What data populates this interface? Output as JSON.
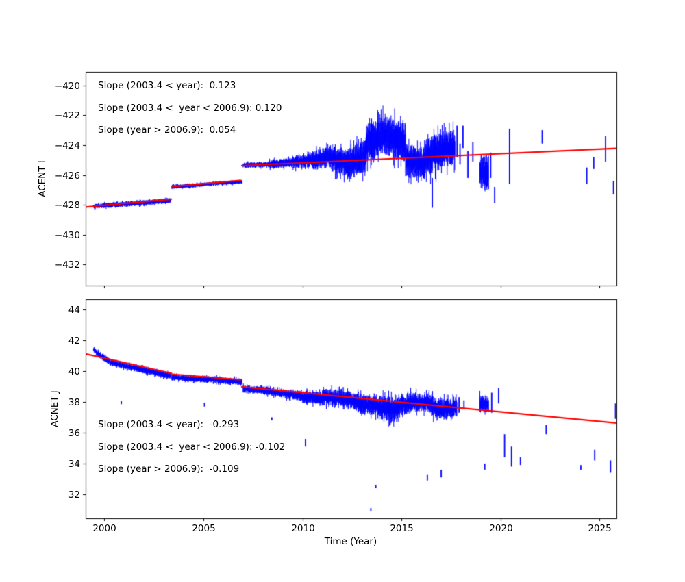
{
  "figure": {
    "background": "#ffffff"
  },
  "colors": {
    "series": "#0000ff",
    "trend": "#ff0000",
    "axis": "#000000",
    "text": "#000000"
  },
  "x_axis": {
    "label": "Time (Year)",
    "range": [
      1999.05,
      2025.85
    ],
    "ticks": [
      2000,
      2005,
      2010,
      2015,
      2020,
      2025
    ],
    "tick_labels": [
      "2000",
      "2005",
      "2010",
      "2015",
      "2020",
      "2025"
    ]
  },
  "chart_data": [
    {
      "type": "line",
      "ylabel": "ACENT I",
      "ylim": [
        -433.4,
        -419.1
      ],
      "yticks": [
        -420,
        -422,
        -424,
        -426,
        -428,
        -430,
        -432
      ],
      "ytick_labels": [
        "−420",
        "−422",
        "−424",
        "−426",
        "−428",
        "−430",
        "−432"
      ],
      "annotations": [
        "Slope (2003.4 < year):  0.123",
        "Slope (2003.4 <  year < 2006.9): 0.120",
        "Slope (year > 2006.9):  0.054"
      ],
      "trend_slopes": {
        "before_2003_4": 0.123,
        "from_2003_4_to_2006_9": 0.12,
        "after_2006_9": 0.054
      },
      "trend_segments": [
        [
          1999.05,
          -428.15,
          2003.4,
          -427.62
        ],
        [
          2003.4,
          -426.78,
          2006.9,
          -426.36
        ],
        [
          2006.9,
          -425.38,
          2025.85,
          -424.22
        ]
      ],
      "noise_band": [
        [
          1999.45,
          2000.0,
          -428.1,
          -428.05,
          0.16
        ],
        [
          2000.0,
          2001.0,
          -428.05,
          -427.95,
          0.18
        ],
        [
          2001.0,
          2002.0,
          -427.95,
          -427.85,
          0.18
        ],
        [
          2002.0,
          2003.35,
          -427.85,
          -427.7,
          0.17
        ],
        [
          2003.4,
          2004.3,
          -426.8,
          -426.72,
          0.14
        ],
        [
          2004.3,
          2005.3,
          -426.72,
          -426.6,
          0.13
        ],
        [
          2005.3,
          2006.95,
          -426.6,
          -426.45,
          0.13
        ],
        [
          2007.0,
          2008.3,
          -425.35,
          -425.3,
          0.18
        ],
        [
          2008.3,
          2009.5,
          -425.3,
          -425.15,
          0.3
        ],
        [
          2009.5,
          2010.5,
          -425.15,
          -425.0,
          0.45
        ],
        [
          2010.5,
          2011.5,
          -425.0,
          -424.8,
          0.7
        ],
        [
          2011.5,
          2012.3,
          -424.9,
          -425.2,
          0.95
        ],
        [
          2012.3,
          2013.2,
          -425.3,
          -424.7,
          1.1
        ],
        [
          2013.2,
          2014.0,
          -423.9,
          -423.4,
          1.3
        ],
        [
          2014.0,
          2015.2,
          -423.3,
          -423.8,
          1.35
        ],
        [
          2015.2,
          2016.2,
          -425.0,
          -425.2,
          1.1
        ],
        [
          2016.2,
          2017.0,
          -424.8,
          -424.4,
          1.3
        ],
        [
          2017.0,
          2017.7,
          -424.3,
          -424.2,
          1.2
        ],
        [
          2018.95,
          2019.4,
          -425.8,
          -425.9,
          1.2
        ]
      ],
      "outlier_strokes": [
        [
          2016.55,
          -426.2,
          -428.2
        ],
        [
          2017.8,
          -422.7,
          -424.8
        ],
        [
          2017.95,
          -423.9,
          -425.3
        ],
        [
          2018.1,
          -422.7,
          -424.2
        ],
        [
          2018.35,
          -424.4,
          -426.2
        ],
        [
          2018.6,
          -423.8,
          -425.1
        ],
        [
          2019.5,
          -424.5,
          -426.2
        ],
        [
          2019.7,
          -426.8,
          -427.9
        ],
        [
          2020.45,
          -422.9,
          -426.6
        ],
        [
          2022.1,
          -423.0,
          -423.9
        ],
        [
          2024.35,
          -425.5,
          -426.6
        ],
        [
          2024.7,
          -424.8,
          -425.6
        ],
        [
          2025.3,
          -423.4,
          -425.1
        ],
        [
          2025.7,
          -426.4,
          -427.3
        ]
      ]
    },
    {
      "type": "line",
      "ylabel": "ACNET J",
      "ylim": [
        30.44,
        44.67
      ],
      "yticks": [
        44,
        42,
        40,
        38,
        36,
        34,
        32
      ],
      "ytick_labels": [
        "44",
        "42",
        "40",
        "38",
        "36",
        "34",
        "32"
      ],
      "annotations": [
        "Slope (2003.4 < year):  -0.293",
        "Slope (2003.4 <  year < 2006.9): -0.102",
        "Slope (year > 2006.9):  -0.109"
      ],
      "trend_slopes": {
        "before_2003_4": -0.293,
        "from_2003_4_to_2006_9": -0.102,
        "after_2006_9": -0.109
      },
      "trend_segments": [
        [
          1999.05,
          41.12,
          2003.4,
          39.85
        ],
        [
          2003.4,
          39.8,
          2006.9,
          39.44
        ],
        [
          2006.9,
          38.98,
          2025.85,
          36.63
        ]
      ],
      "noise_band": [
        [
          1999.45,
          1999.8,
          41.4,
          41.0,
          0.2
        ],
        [
          1999.8,
          2000.3,
          41.0,
          40.6,
          0.22
        ],
        [
          2000.3,
          2001.2,
          40.55,
          40.3,
          0.2
        ],
        [
          2001.2,
          2002.2,
          40.3,
          40.0,
          0.22
        ],
        [
          2002.2,
          2003.35,
          40.0,
          39.7,
          0.22
        ],
        [
          2003.4,
          2004.5,
          39.6,
          39.5,
          0.2
        ],
        [
          2004.5,
          2005.5,
          39.5,
          39.45,
          0.22
        ],
        [
          2005.5,
          2006.95,
          39.45,
          39.3,
          0.22
        ],
        [
          2007.0,
          2008.0,
          38.85,
          38.75,
          0.25
        ],
        [
          2008.0,
          2009.0,
          38.75,
          38.55,
          0.28
        ],
        [
          2009.0,
          2010.0,
          38.55,
          38.35,
          0.3
        ],
        [
          2010.0,
          2011.0,
          38.3,
          38.25,
          0.4
        ],
        [
          2011.0,
          2012.0,
          38.3,
          38.3,
          0.55
        ],
        [
          2012.0,
          2012.8,
          38.2,
          38.0,
          0.6
        ],
        [
          2012.8,
          2013.8,
          37.9,
          37.7,
          0.65
        ],
        [
          2013.8,
          2014.8,
          37.6,
          37.5,
          0.8
        ],
        [
          2014.8,
          2015.5,
          37.7,
          38.0,
          0.7
        ],
        [
          2015.5,
          2016.5,
          38.0,
          37.9,
          0.6
        ],
        [
          2016.5,
          2017.3,
          37.7,
          37.5,
          0.7
        ],
        [
          2017.3,
          2017.8,
          37.6,
          37.6,
          0.6
        ],
        [
          2018.95,
          2019.4,
          37.9,
          37.8,
          0.55
        ]
      ],
      "outlier_strokes": [
        [
          2000.85,
          37.85,
          38.05
        ],
        [
          2005.05,
          37.7,
          37.95
        ],
        [
          2008.45,
          36.8,
          37.0
        ],
        [
          2010.15,
          35.1,
          35.6
        ],
        [
          2013.45,
          30.9,
          31.1
        ],
        [
          2013.7,
          32.4,
          32.6
        ],
        [
          2016.3,
          32.9,
          33.3
        ],
        [
          2017.0,
          33.1,
          33.6
        ],
        [
          2017.9,
          37.3,
          38.3
        ],
        [
          2018.15,
          37.6,
          38.1
        ],
        [
          2019.2,
          33.6,
          34.0
        ],
        [
          2019.55,
          37.3,
          38.6
        ],
        [
          2019.9,
          37.9,
          38.9
        ],
        [
          2020.2,
          34.4,
          35.9
        ],
        [
          2020.55,
          33.8,
          35.1
        ],
        [
          2021.0,
          33.9,
          34.4
        ],
        [
          2022.3,
          35.9,
          36.5
        ],
        [
          2024.05,
          33.6,
          33.9
        ],
        [
          2024.75,
          34.2,
          34.9
        ],
        [
          2025.55,
          33.4,
          34.2
        ],
        [
          2025.8,
          36.9,
          37.9
        ]
      ]
    }
  ]
}
